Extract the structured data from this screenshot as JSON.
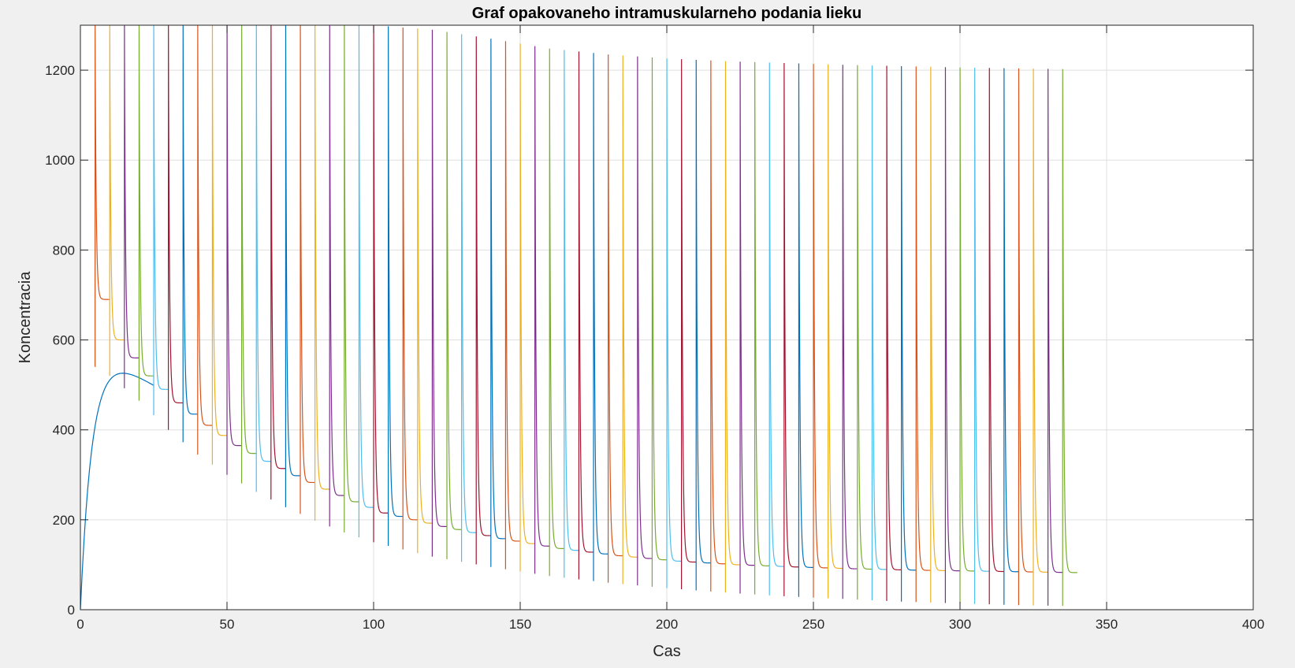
{
  "chart_data": {
    "type": "line",
    "title": "Graf opakovaneho intramuskularneho podania lieku",
    "xlabel": "Cas",
    "ylabel": "Koncentracia",
    "xlim": [
      0,
      400
    ],
    "ylim": [
      0,
      1300
    ],
    "xticks": [
      0,
      50,
      100,
      150,
      200,
      250,
      300,
      350,
      400
    ],
    "yticks": [
      0,
      200,
      400,
      600,
      800,
      1000,
      1200
    ],
    "grid": true,
    "legend": "none",
    "dose_interval": 5,
    "dose_count": 68,
    "segment_end_x": 340,
    "envelope": {
      "x": [
        0,
        5,
        10,
        20,
        30,
        40,
        50,
        60,
        70,
        80,
        90,
        100,
        120,
        140,
        160,
        180,
        200,
        220,
        240,
        260,
        280,
        300,
        320,
        340
      ],
      "trough": [
        0,
        540,
        520,
        465,
        400,
        345,
        300,
        262,
        228,
        198,
        172,
        150,
        118,
        95,
        75,
        60,
        48,
        38,
        30,
        24,
        18,
        14,
        10,
        8
      ],
      "spike_peak": [
        1300,
        1300,
        1300,
        1300,
        1300,
        1300,
        1300,
        1300,
        1300,
        1300,
        1300,
        1300,
        1290,
        1270,
        1248,
        1235,
        1226,
        1220,
        1216,
        1212,
        1209,
        1206,
        1204,
        1202
      ],
      "end_value": [
        1200,
        690,
        600,
        520,
        460,
        410,
        365,
        330,
        298,
        268,
        240,
        215,
        185,
        158,
        136,
        120,
        108,
        100,
        95,
        91,
        88,
        86,
        84,
        82
      ]
    },
    "series_colors": [
      "#0072BD",
      "#D95319",
      "#EDB120",
      "#7E2F8E",
      "#77AC30",
      "#4DBEEE",
      "#A2142F"
    ]
  }
}
